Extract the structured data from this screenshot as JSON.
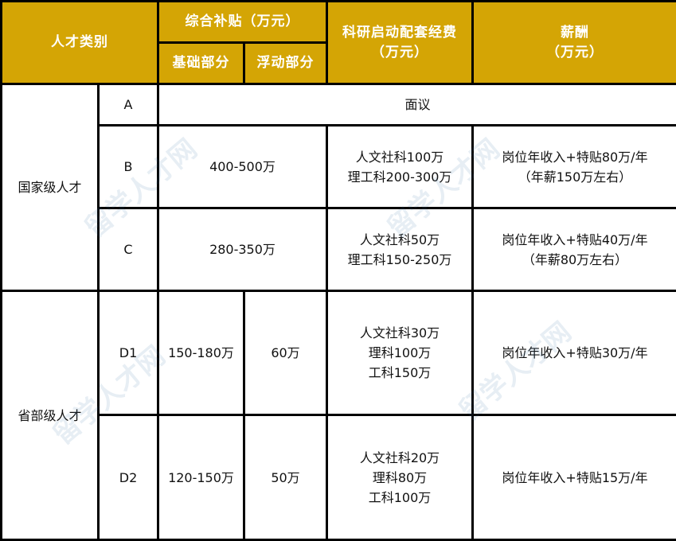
{
  "header": {
    "category": "人才类别",
    "subsidy": "综合补贴（万元）",
    "subsidy_base": "基础部分",
    "subsidy_float": "浮动部分",
    "research_fund": [
      "科研启动配套经费",
      "（万元）"
    ],
    "salary": [
      "薪酬",
      "（万元）"
    ]
  },
  "groups": {
    "national": "国家级人才",
    "provincial": "省部级人才"
  },
  "rows": [
    {
      "level": "A",
      "subsidy": "面议"
    },
    {
      "level": "B",
      "subsidy": "400-500万",
      "research": [
        "人文社科100万",
        "理工科200-300万"
      ],
      "salary": [
        "岗位年收入+特贴80万/年",
        "（年薪150万左右）"
      ]
    },
    {
      "level": "C",
      "subsidy": "280-350万",
      "research": [
        "人文社科50万",
        "理工科150-250万"
      ],
      "salary": [
        "岗位年收入+特贴40万/年",
        "（年薪80万左右）"
      ]
    },
    {
      "level": "D1",
      "base": "150-180万",
      "float": "60万",
      "research": [
        "人文社科30万",
        "理科100万",
        "工科150万"
      ],
      "salary": [
        "岗位年收入+特贴30万/年"
      ]
    },
    {
      "level": "D2",
      "base": "120-150万",
      "float": "50万",
      "research": [
        "人文社科20万",
        "理科80万",
        "工科100万"
      ],
      "salary": [
        "岗位年收入+特贴15万/年"
      ]
    }
  ],
  "watermark": "留学人才网",
  "colors": {
    "header_bg": "#D4A505",
    "header_text": "#FFFFFF",
    "border": "#000000"
  }
}
